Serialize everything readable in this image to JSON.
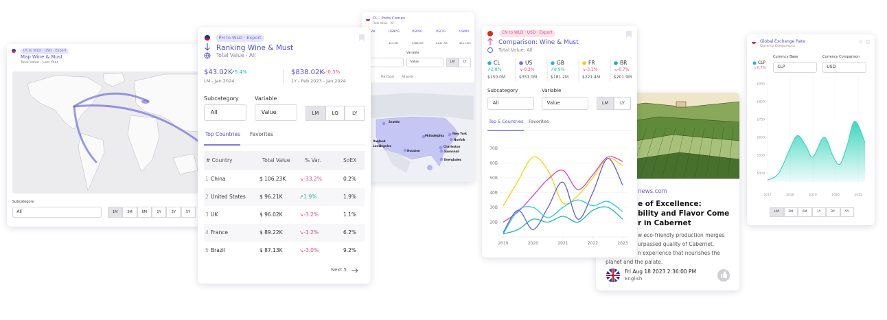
{
  "map_card": {
    "tag": "US to WLD · USD · Export",
    "title": "Map Wine & Must",
    "subtitle": "Total Value - Last Year",
    "subcategory_label": "Subcategory",
    "subcategory_value": "All",
    "periods": [
      "1M",
      "3M",
      "6M",
      "1Y",
      "2Y",
      "5Y"
    ]
  },
  "ranking_card": {
    "tag": "PH to WLD · Export",
    "title": "Ranking Wine & Must",
    "subtitle": "Total Value - All",
    "stats": [
      {
        "value": "$43.02K",
        "change": "↗5.4%",
        "period": "LM - Jan 2024"
      },
      {
        "value": "$838.02K",
        "change": "↘-0.3%",
        "period": "1Y - Feb 2023 - Jan 2024"
      }
    ],
    "subcategory_label": "Subcategory",
    "subcategory_value": "All",
    "variable_label": "Variable",
    "variable_value": "Value",
    "periods": [
      "LM",
      "LQ",
      "LY"
    ],
    "tabs": [
      "Top Countries",
      "Favorites"
    ],
    "table": {
      "header": [
        "# Country",
        "Total Value",
        "% Var.",
        "SoEX"
      ],
      "rows": [
        [
          "1",
          "China",
          "$ 106.23K",
          "↘-33.2%",
          "0.2%"
        ],
        [
          "2",
          "United States",
          "$ 96.21K",
          "↗1.9%",
          "1.9%"
        ],
        [
          "3",
          "UK",
          "$ 96.02K",
          "↘-3.2%",
          "1.1%"
        ],
        [
          "4",
          "France",
          "$ 89.22K",
          "↘-1.2%",
          "6.2%"
        ],
        [
          "5",
          "Brazil",
          "$ 87.13K",
          "↘-3.0%",
          "9.2%"
        ]
      ]
    },
    "next": "Next 5"
  },
  "ports_card": {
    "title": "CL - Ports Comex",
    "subtitle": "Total Value - All",
    "ports": [
      {
        "code": "SAK"
      },
      {
        "code": "USNYG",
        "value": "$24.0M"
      },
      {
        "code": "USPVG",
        "value": "$388.2M"
      },
      {
        "code": "USCIG",
        "value": "$147.7M"
      },
      {
        "code": "USMIA",
        "value": "$121.3M"
      }
    ],
    "variable_label": "Variable",
    "variable_value": "Value",
    "periods": [
      "LM",
      "LY"
    ],
    "tabs": [
      "Pie Chart",
      "All ports"
    ],
    "cities": [
      "Seattle",
      "Oakland",
      "Los Angeles",
      "Houston",
      "Philadelphia",
      "New York",
      "Norfolk",
      "Charleston",
      "Savannah",
      "Everglades"
    ]
  },
  "comparison_card": {
    "tag": "CN to WLD · USD · Export",
    "title": "Comparison: Wine & Must",
    "subtitle": "Total Value: All",
    "countries": [
      {
        "name": "CL",
        "color": "#1fb5c9",
        "change": "↗2.8%",
        "value": "$150.0M"
      },
      {
        "name": "US",
        "color": "#6d6de8",
        "change": "↘-0.3%",
        "value": "$351.0M"
      },
      {
        "name": "GB",
        "color": "#28b0e8",
        "change": "↗8.9%",
        "value": "$181.2M"
      },
      {
        "name": "FR",
        "color": "#f2cf00",
        "change": "↘-3.1%",
        "value": "$221.4M"
      },
      {
        "name": "BR",
        "color": "#22b39c",
        "change": "↘-0.7%",
        "value": "$201.9M"
      }
    ],
    "subcategory_label": "Subcategory",
    "subcategory_value": "All",
    "variable_label": "Variable",
    "variable_value": "Value",
    "periods": [
      "LM",
      "LY"
    ],
    "tabs": [
      "Top 5 Countries",
      "Favorites"
    ],
    "chart": {
      "type": "line",
      "x": [
        2019,
        2019.5,
        2020,
        2020.5,
        2021,
        2021.5,
        2022,
        2022.5,
        2023
      ],
      "xlim": [
        2019,
        2023
      ],
      "xticks": [
        2019,
        2020,
        2021,
        2022,
        2023
      ],
      "ylim": [
        10,
        75
      ],
      "yticks": [
        {
          "value": 20,
          "label": "20B"
        },
        {
          "value": 30,
          "label": "30B"
        },
        {
          "value": 40,
          "label": "40B"
        },
        {
          "value": 50,
          "label": "50B"
        },
        {
          "value": 60,
          "label": "60B"
        },
        {
          "value": 70,
          "label": "70B"
        }
      ],
      "grid": true,
      "series": [
        {
          "color": "#f5d400",
          "values": [
            31,
            48,
            64,
            55,
            33,
            38,
            50,
            63,
            58
          ]
        },
        {
          "color": "#e041c0",
          "values": [
            20,
            27,
            38,
            49,
            55,
            42,
            52,
            64,
            61
          ]
        },
        {
          "color": "#5b5be0",
          "values": [
            13,
            28,
            15,
            30,
            47,
            22,
            40,
            63,
            45
          ]
        },
        {
          "color": "#28c6e6",
          "values": [
            12,
            28,
            30,
            23,
            30,
            35,
            31,
            34,
            27
          ]
        },
        {
          "color": "#1fb5a5",
          "values": [
            12,
            15,
            22,
            20,
            24,
            20,
            28,
            30,
            22
          ]
        }
      ]
    }
  },
  "news_card": {
    "source": "news.com",
    "title_lines": [
      "e of Excellence:",
      "bility and Flavor Come",
      "r in Cabernet"
    ],
    "body_lines": [
      "w eco-friendly production merges",
      "urpassed quality of Cabernet,",
      "n experience that nourishes the",
      "planet and the palate."
    ],
    "date": "Fri Aug 18 2023 2:36:00 PM",
    "language": "English"
  },
  "exchange_card": {
    "title": "Global Exchange Rate",
    "subtitle": "Currency Comparisons",
    "currency": "CLP",
    "change": "↘ 0.7%",
    "base_label": "Currency Base",
    "base_value": "CLP",
    "comparison_label": "Currency Comparison",
    "comparison_value": "USD",
    "chart": {
      "type": "area",
      "color": "#3fd6bf",
      "x": [
        2017,
        2017.5,
        2018,
        2018.33,
        2018.7,
        2019,
        2019.5,
        2019.9,
        2020.2,
        2020.5,
        2020.85,
        2021.3
      ],
      "values": [
        410,
        450,
        590,
        660,
        600,
        540,
        650,
        540,
        500,
        600,
        740,
        620
      ],
      "xlim": [
        2017,
        2021.3
      ],
      "xticks": [
        2017,
        2018,
        2019,
        2020,
        2021
      ],
      "ylim": [
        400,
        1000
      ],
      "yticks": [
        {
          "value": 450,
          "label": "$450"
        },
        {
          "value": 550,
          "label": "$550"
        },
        {
          "value": 650,
          "label": "$650"
        },
        {
          "value": 750,
          "label": "$750"
        },
        {
          "value": 850,
          "label": "$850"
        },
        {
          "value": 950,
          "label": "$950"
        }
      ],
      "grid": true
    },
    "periods": [
      "LM",
      "3M",
      "6M",
      "1Y",
      "2Y",
      "5Y"
    ]
  }
}
